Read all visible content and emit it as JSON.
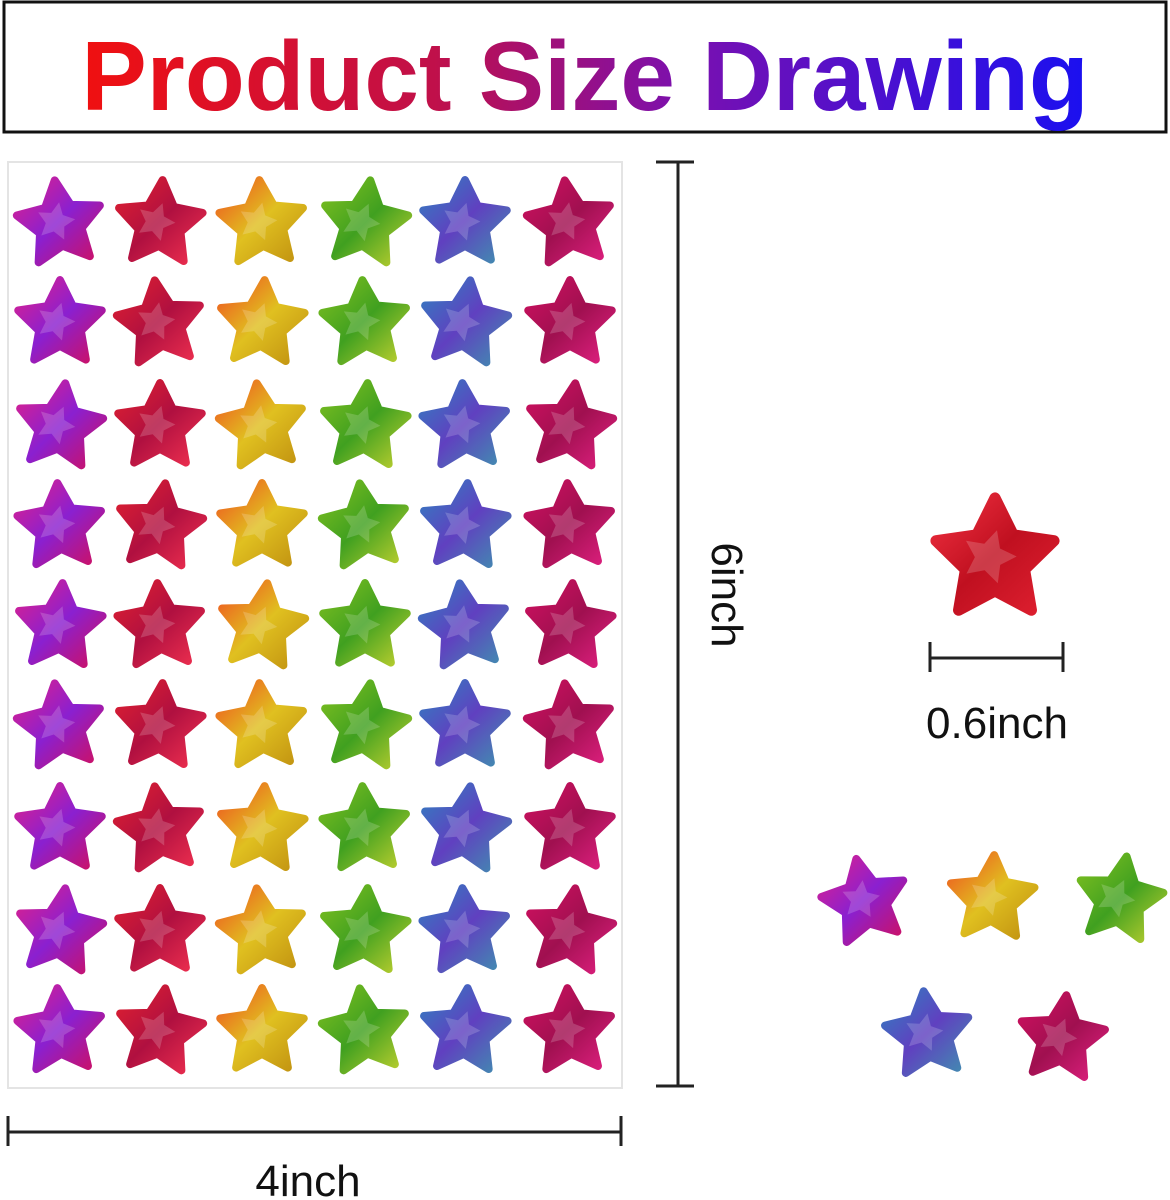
{
  "header": {
    "title": "Product Size Drawing"
  },
  "dimensions": {
    "height": "6inch",
    "star": "0.6inch",
    "width": "4inch"
  }
}
